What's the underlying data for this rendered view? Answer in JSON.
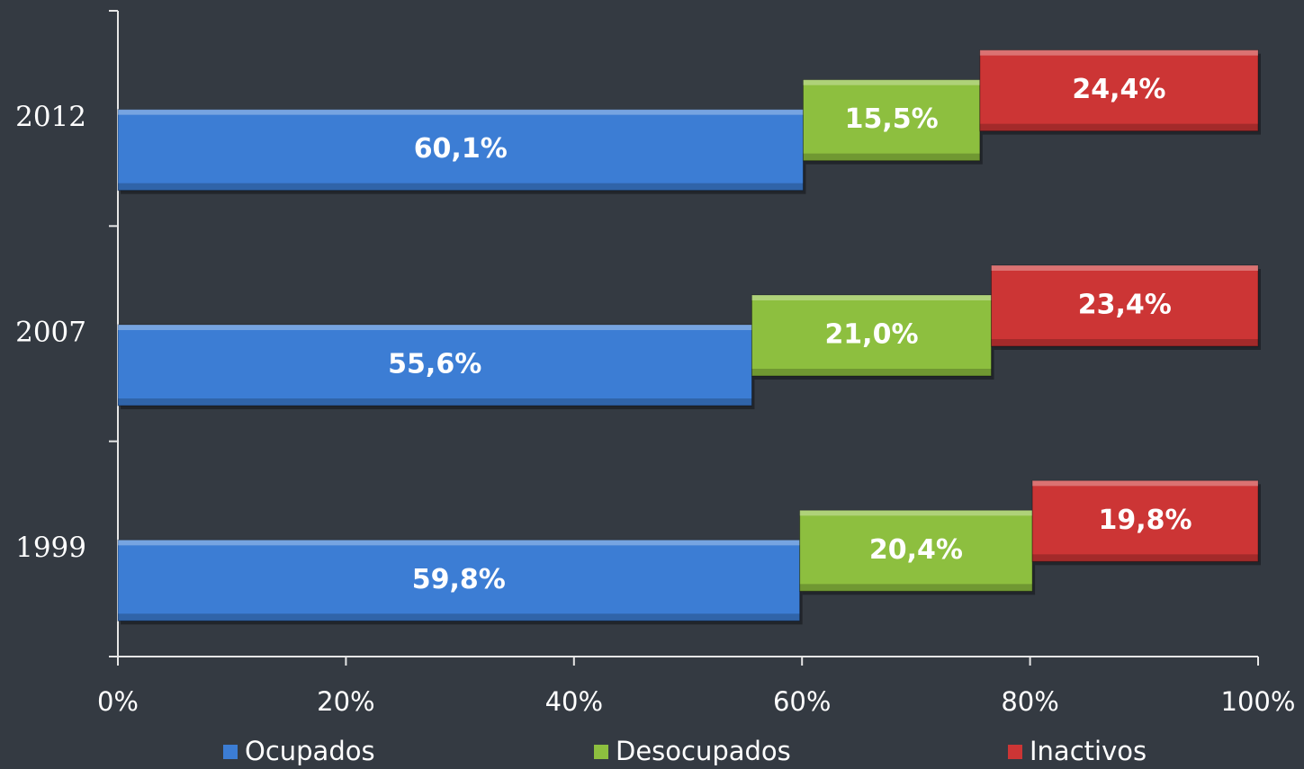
{
  "chart_data": {
    "type": "stacked-bar-horizontal",
    "categories": [
      "1999",
      "2007",
      "2012"
    ],
    "series": [
      {
        "name": "Ocupados",
        "color": "#3c7dd4",
        "values": [
          59.8,
          55.6,
          60.1
        ],
        "value_labels": [
          "59,8%",
          "55,6%",
          "60,1%"
        ]
      },
      {
        "name": "Desocupados",
        "color": "#8dbf3f",
        "values": [
          20.4,
          21.0,
          15.5
        ],
        "value_labels": [
          "20,4%",
          "21,0%",
          "15,5%"
        ]
      },
      {
        "name": "Inactivos",
        "color": "#cc3535",
        "values": [
          19.8,
          23.4,
          24.4
        ],
        "value_labels": [
          "19,8%",
          "23,4%",
          "24,4%"
        ]
      }
    ],
    "xlim": [
      0,
      100
    ],
    "xticks": [
      {
        "value": 0,
        "label": "0%"
      },
      {
        "value": 20,
        "label": "20%"
      },
      {
        "value": 40,
        "label": "40%"
      },
      {
        "value": 60,
        "label": "60%"
      },
      {
        "value": 80,
        "label": "80%"
      },
      {
        "value": 100,
        "label": "100%"
      }
    ],
    "legend": "bottom"
  }
}
